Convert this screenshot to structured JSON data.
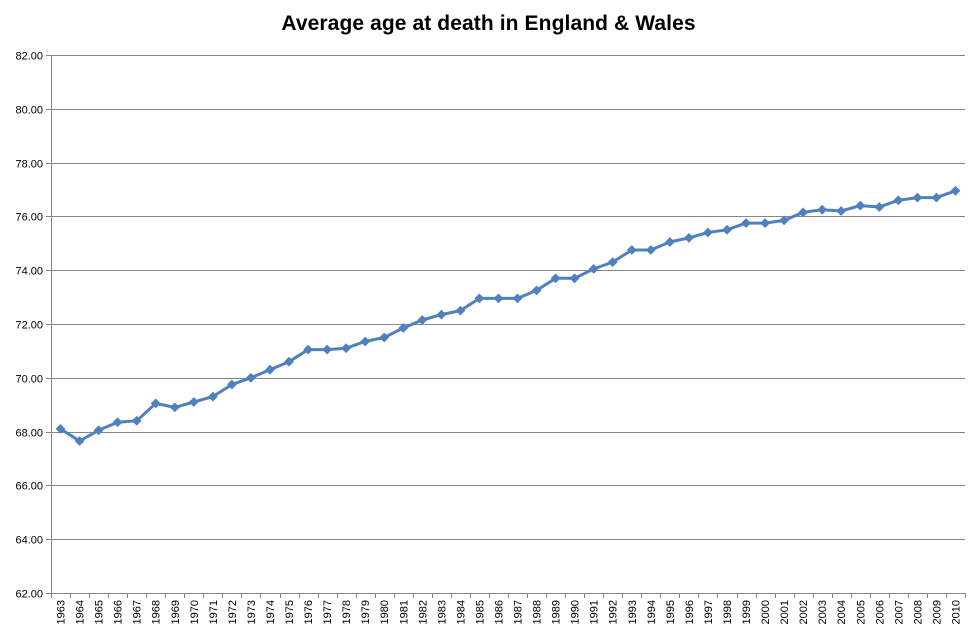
{
  "chart_data": {
    "type": "line",
    "title": "Average age at death in England & Wales",
    "xlabel": "",
    "ylabel": "",
    "ylim": [
      62,
      82
    ],
    "yticks": [
      "62.00",
      "64.00",
      "66.00",
      "68.00",
      "70.00",
      "72.00",
      "74.00",
      "76.00",
      "78.00",
      "80.00",
      "82.00"
    ],
    "grid": true,
    "legend": "none",
    "colors": {
      "series": "#4F81BD",
      "grid": "#868686",
      "axis": "#868686"
    },
    "categories": [
      "1963",
      "1964",
      "1965",
      "1966",
      "1967",
      "1968",
      "1969",
      "1970",
      "1971",
      "1972",
      "1973",
      "1974",
      "1975",
      "1976",
      "1977",
      "1978",
      "1979",
      "1980",
      "1981",
      "1982",
      "1983",
      "1984",
      "1985",
      "1986",
      "1987",
      "1988",
      "1989",
      "1990",
      "1991",
      "1992",
      "1993",
      "1994",
      "1995",
      "1996",
      "1997",
      "1998",
      "1999",
      "2000",
      "2001",
      "2002",
      "2003",
      "2004",
      "2005",
      "2006",
      "2007",
      "2008",
      "2009",
      "2010"
    ],
    "series": [
      {
        "values": [
          68.1,
          67.65,
          68.05,
          68.35,
          68.4,
          69.05,
          68.9,
          69.1,
          69.3,
          69.75,
          70.0,
          70.3,
          70.6,
          71.05,
          71.05,
          71.1,
          71.35,
          71.5,
          71.85,
          72.15,
          72.35,
          72.5,
          72.95,
          72.95,
          72.95,
          73.25,
          73.7,
          73.7,
          74.05,
          74.3,
          74.75,
          74.75,
          75.05,
          75.2,
          75.4,
          75.5,
          75.75,
          75.75,
          75.85,
          76.15,
          76.25,
          76.2,
          76.4,
          76.35,
          76.6,
          76.7,
          76.7,
          76.95
        ]
      }
    ]
  }
}
